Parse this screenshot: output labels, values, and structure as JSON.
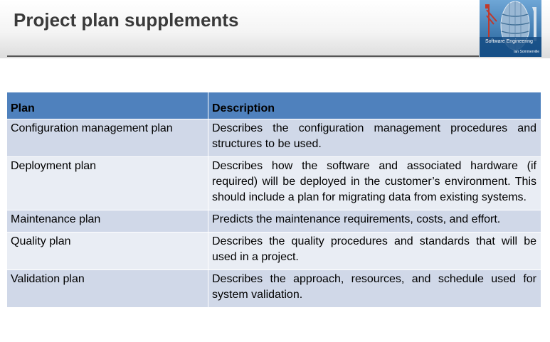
{
  "slide": {
    "title": "Project plan supplements"
  },
  "cover": {
    "title": "Software Engineering",
    "author": "Ian Sommerville"
  },
  "table": {
    "headers": {
      "plan": "Plan",
      "description": "Description"
    },
    "rows": [
      {
        "plan": "Configuration management plan",
        "description": "Describes the configuration management procedures and structures to be used."
      },
      {
        "plan": "Deployment plan",
        "description": "Describes how the software and associated hardware (if required) will be deployed in the customer’s environment. This should include a plan for migrating data from existing systems."
      },
      {
        "plan": "Maintenance plan",
        "description": "Predicts the maintenance requirements, costs, and effort."
      },
      {
        "plan": "Quality plan",
        "description": "Describes the quality procedures and standards that will be used in a project."
      },
      {
        "plan": "Validation plan",
        "description": "Describes the approach, resources, and schedule used for system validation."
      }
    ]
  }
}
